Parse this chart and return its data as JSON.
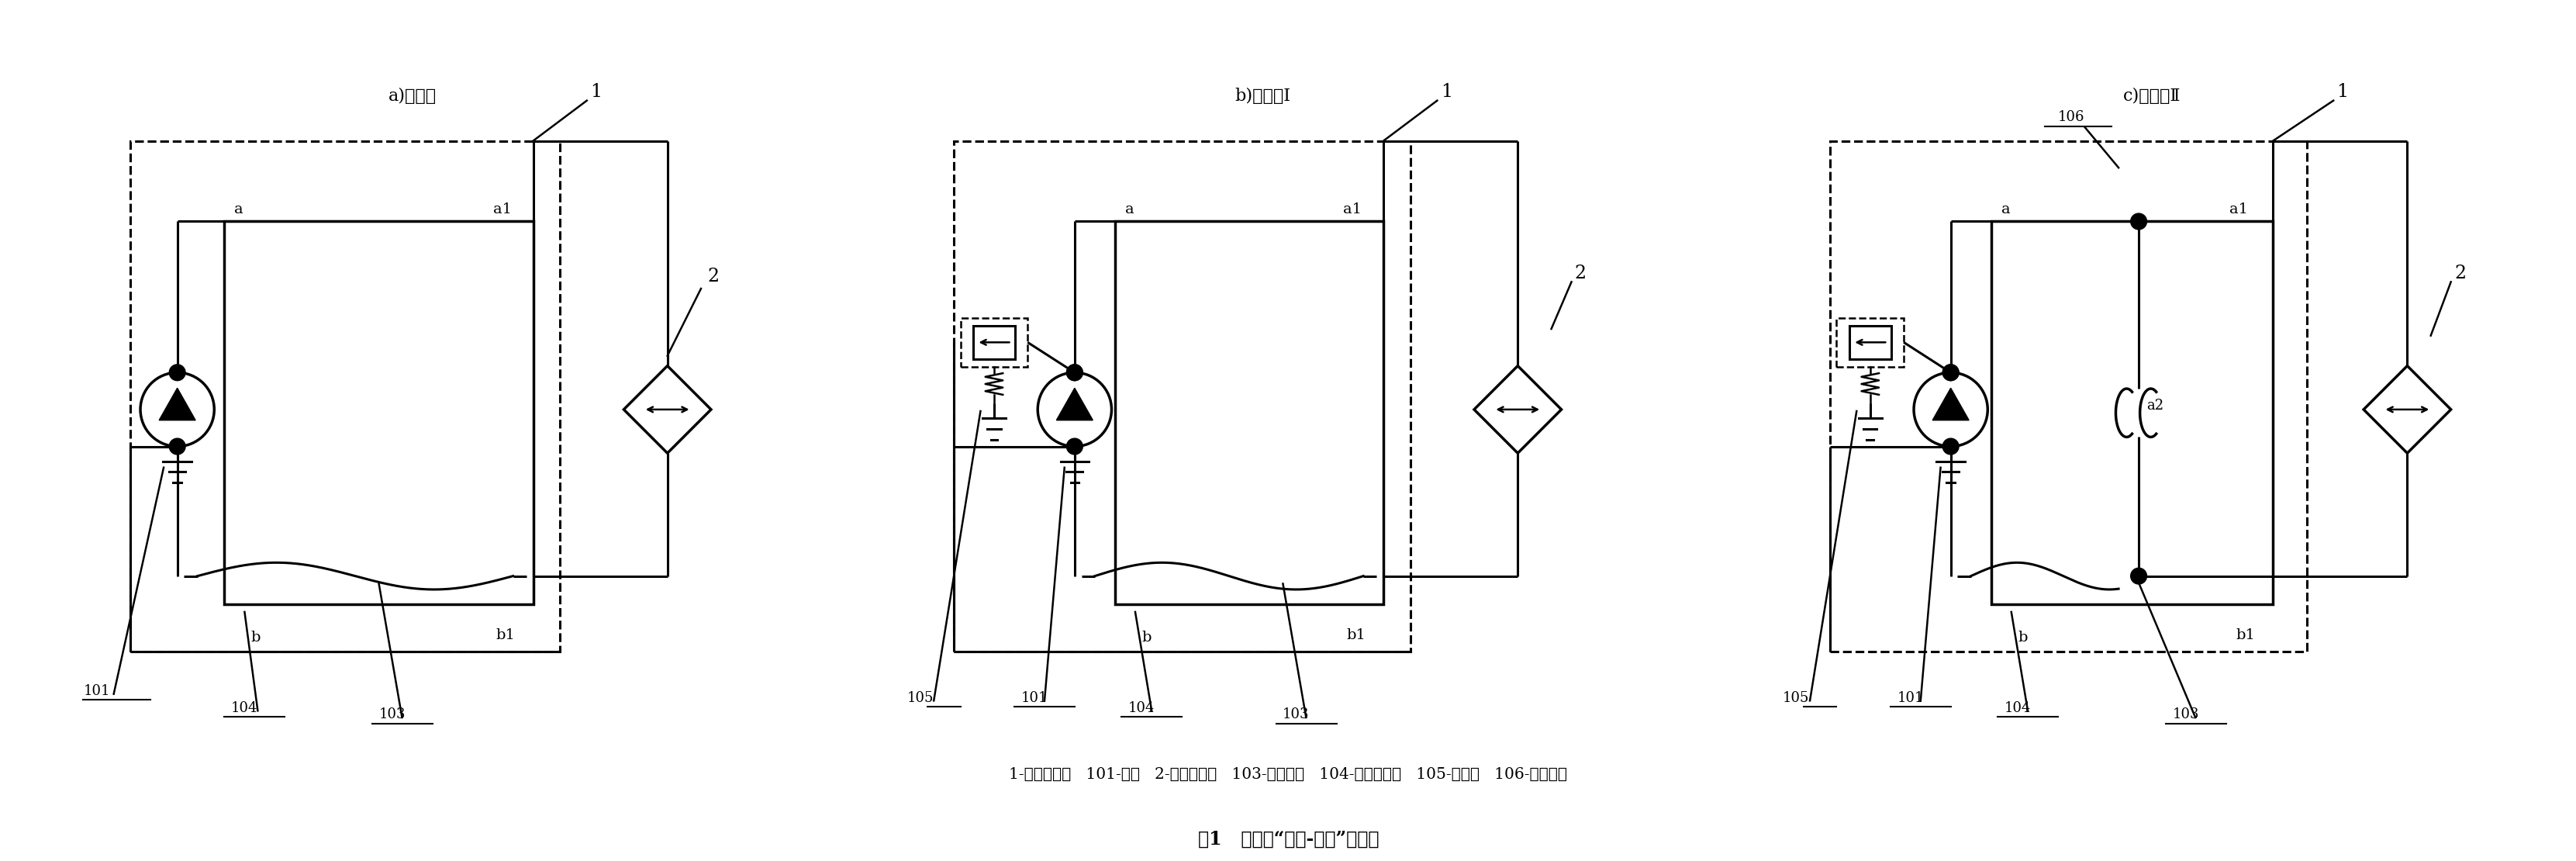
{
  "bg_color": "#ffffff",
  "title": "图1   变速器“润滑-冷却”原系统",
  "subtitle_a": "a)原系统",
  "subtitle_b": "b)新系统Ⅰ",
  "subtitle_c": "c)新系统Ⅱ",
  "legend": "1-变速器总成   101-油泵   2-风冷油冷器   103-润滑油路   104-变速器壳体   105-安全阀   106-节流油路"
}
